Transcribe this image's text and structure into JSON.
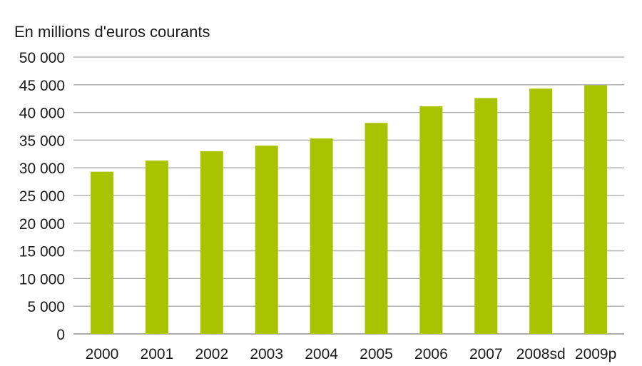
{
  "chart_data": {
    "type": "bar",
    "ylabel": "En millions d'euros courants",
    "categories": [
      "2000",
      "2001",
      "2002",
      "2003",
      "2004",
      "2005",
      "2006",
      "2007",
      "2008sd",
      "2009p"
    ],
    "values": [
      29300,
      31300,
      33000,
      34000,
      35300,
      38100,
      41100,
      42600,
      44300,
      44900
    ],
    "ylim": [
      0,
      50000
    ],
    "yticks": [
      0,
      5000,
      10000,
      15000,
      20000,
      25000,
      30000,
      35000,
      40000,
      45000,
      50000
    ],
    "ytick_labels": [
      "0",
      "5 000",
      "10 000",
      "15 000",
      "20 000",
      "25 000",
      "30 000",
      "35 000",
      "40 000",
      "45 000",
      "50 000"
    ],
    "grid": true,
    "bar_color": "#a8c400",
    "grid_color": "#a8a8a8"
  }
}
